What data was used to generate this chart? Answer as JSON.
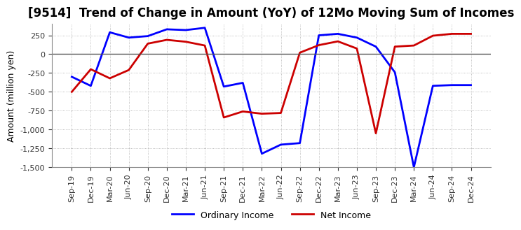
{
  "title": "[9514]  Trend of Change in Amount (YoY) of 12Mo Moving Sum of Incomes",
  "ylabel": "Amount (million yen)",
  "x_labels": [
    "Sep-19",
    "Dec-19",
    "Mar-20",
    "Jun-20",
    "Sep-20",
    "Dec-20",
    "Mar-21",
    "Jun-21",
    "Sep-21",
    "Dec-21",
    "Mar-22",
    "Jun-22",
    "Sep-22",
    "Dec-22",
    "Mar-23",
    "Jun-23",
    "Sep-23",
    "Dec-23",
    "Mar-24",
    "Jun-24",
    "Sep-24",
    "Dec-24"
  ],
  "ordinary_income": [
    -300,
    -420,
    290,
    220,
    240,
    330,
    320,
    350,
    -430,
    -380,
    -1320,
    -1200,
    -1180,
    250,
    270,
    220,
    100,
    -240,
    -1500,
    -420,
    -410,
    -410
  ],
  "net_income": [
    -500,
    -200,
    -320,
    -210,
    140,
    190,
    165,
    115,
    -840,
    -760,
    -790,
    -780,
    20,
    120,
    170,
    75,
    -1050,
    100,
    115,
    245,
    270,
    270
  ],
  "ordinary_income_color": "#0000ff",
  "net_income_color": "#cc0000",
  "ylim": [
    -1500,
    400
  ],
  "yticks": [
    250,
    0,
    -250,
    -500,
    -750,
    -1000,
    -1250,
    -1500
  ],
  "background_color": "#ffffff",
  "grid_color": "#aaaaaa",
  "title_fontsize": 12
}
